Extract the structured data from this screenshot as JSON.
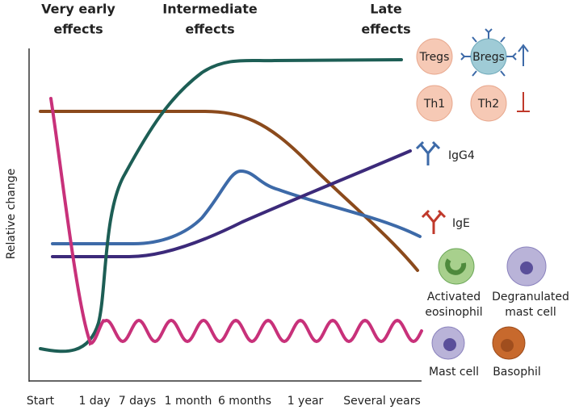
{
  "phases": [
    {
      "lines": [
        "Very early",
        "effects"
      ]
    },
    {
      "lines": [
        "Intermediate",
        "effects"
      ]
    },
    {
      "lines": [
        "Late",
        "effects"
      ]
    }
  ],
  "y_axis_label": "Relative change",
  "x_labels": [
    "Start",
    "1 day",
    "7 days",
    "1 month",
    "6 months",
    "1 year",
    "Several years"
  ],
  "cells": {
    "tregs": "Tregs",
    "bregs": "Bregs",
    "th1": "Th1",
    "th2": "Th2"
  },
  "antibodies": {
    "igg4": "IgG4",
    "ige": "IgE"
  },
  "effector_cells": {
    "eosinophil": [
      "Activated",
      "eosinophil"
    ],
    "degranulated": [
      "Degranulated",
      "mast cell"
    ],
    "mast": "Mast cell",
    "basophil": "Basophil"
  }
}
